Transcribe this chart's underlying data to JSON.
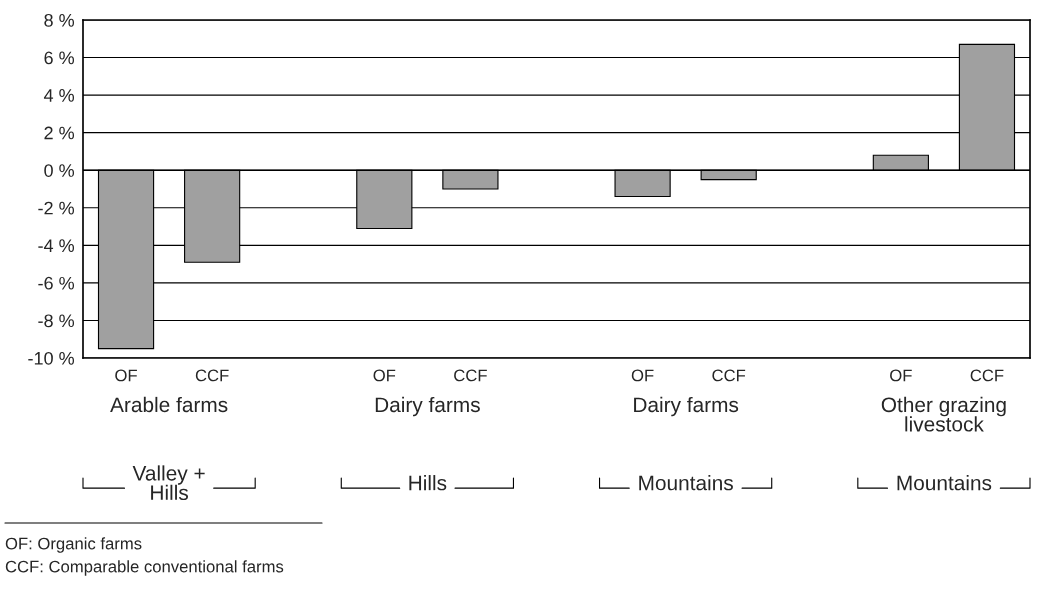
{
  "chart_data": {
    "type": "bar",
    "categories": [
      "OF",
      "CCF",
      null,
      "OF",
      "CCF",
      null,
      "OF",
      "CCF",
      null,
      "OF",
      "CCF"
    ],
    "values": [
      -9.5,
      -4.9,
      null,
      -3.1,
      -1.0,
      null,
      -1.4,
      -0.5,
      null,
      0.8,
      6.7
    ],
    "color": "#a0a0a0",
    "ylim": [
      -10,
      8
    ],
    "yticks": [
      {
        "value": -10,
        "label": "-10 %"
      },
      {
        "value": -8,
        "label": "-8 %"
      },
      {
        "value": -6,
        "label": "-6 %"
      },
      {
        "value": -4,
        "label": "-4 %"
      },
      {
        "value": -2,
        "label": "-2 %"
      },
      {
        "value": 0,
        "label": "0 %"
      },
      {
        "value": 2,
        "label": "2 %"
      },
      {
        "value": 4,
        "label": "4 %"
      },
      {
        "value": 6,
        "label": "6 %"
      },
      {
        "value": 8,
        "label": "8 %"
      }
    ],
    "grid": "y",
    "annotations": [
      "Arable farms",
      "Dairy farms",
      "Dairy farms",
      "Other grazing\nlivestock",
      "Valley +\nHills",
      "Hills",
      "Mountains",
      "Mountains",
      "OF: Organic farms",
      "CCF: Comparable conventional farms"
    ]
  }
}
